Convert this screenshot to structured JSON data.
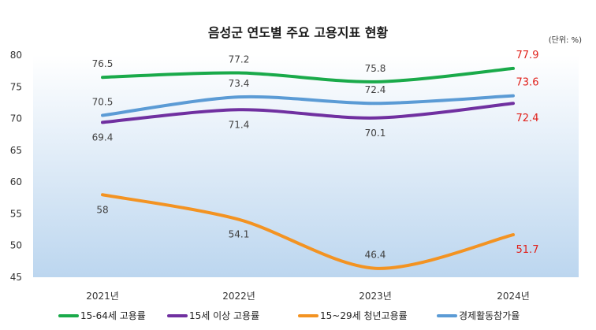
{
  "chart_data": {
    "type": "line",
    "title": "음성군 연도별 주요 고용지표 현황",
    "unit_note": "(단위: %)",
    "categories": [
      "2021년",
      "2022년",
      "2023년",
      "2024년"
    ],
    "ylim": [
      45,
      80
    ],
    "yticks": [
      45,
      50,
      55,
      60,
      65,
      70,
      75,
      80
    ],
    "grid": false,
    "legend_position": "bottom",
    "series": [
      {
        "name": "15-64세 고용률",
        "color": "#1aaa4a",
        "values": [
          76.5,
          77.2,
          75.8,
          77.9
        ],
        "label_side": [
          "above",
          "above",
          "above",
          "above"
        ]
      },
      {
        "name": "15세 이상 고용률",
        "color": "#7030a0",
        "values": [
          69.4,
          71.4,
          70.1,
          72.4
        ],
        "label_side": [
          "below",
          "below",
          "below",
          "below"
        ]
      },
      {
        "name": "15~29세 청년고용률",
        "color": "#f39322",
        "values": [
          58,
          54.1,
          46.4,
          51.7
        ],
        "label_side": [
          "below",
          "below",
          "above",
          "below"
        ]
      },
      {
        "name": "경제활동참가율",
        "color": "#5b9bd5",
        "values": [
          70.5,
          73.4,
          72.4,
          73.6
        ],
        "label_side": [
          "above",
          "above",
          "above",
          "above"
        ]
      }
    ],
    "last_label_color": "#e0201a",
    "plot_background": [
      "#ffffff",
      "#bcd6ef"
    ]
  }
}
